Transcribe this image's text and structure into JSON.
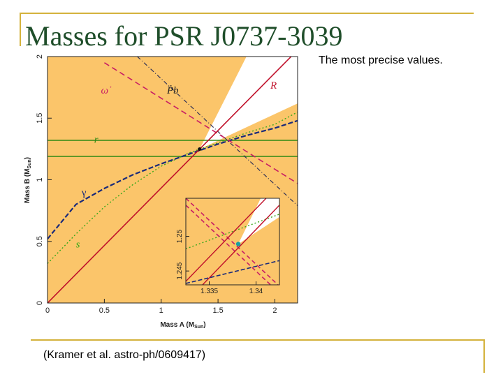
{
  "slide": {
    "title": "Masses for PSR J0737-3039",
    "subtitle": "The most precise values.",
    "citation": "(Kramer et al. astro-ph/0609417)"
  },
  "colors": {
    "frame": "#d4b23c",
    "title": "#1f4e2a",
    "allowed_region": "#ffffff",
    "excluded_region": "#fbc56a",
    "R_line": "#c0102a",
    "omega_dot": "#c81e64",
    "Pb_dot": "#333355",
    "r_shapiro": "#2f8a12",
    "gamma": "#1a2a7a",
    "s_shapiro": "#3aa81a",
    "best_fit": "#1aa0a0"
  },
  "chart_data": [
    {
      "type": "line",
      "xlabel": "Mass A (M",
      "xlabel_sub": "Sun",
      "xlabel_end": ")",
      "ylabel": "Mass B (M",
      "ylabel_sub": "Sun",
      "ylabel_end": ")",
      "xlim": [
        0,
        2.2
      ],
      "ylim": [
        0,
        2.0
      ],
      "xticks": [
        "0",
        "0.5",
        "1",
        "1.5",
        "2"
      ],
      "xtick_values": [
        0,
        0.5,
        1,
        1.5,
        2
      ],
      "yticks": [
        "0",
        "0.5",
        "1",
        "1.5",
        "2"
      ],
      "ytick_values": [
        0,
        0.5,
        1,
        1.5,
        2
      ],
      "curve_labels": {
        "omega_dot": "ω̇",
        "Pb_dot": "Ṗb",
        "R": "R",
        "r": "r",
        "gamma": "γ",
        "s": "s"
      },
      "series": [
        {
          "key": "R",
          "x": [
            0,
            2.2
          ],
          "y": [
            0,
            2.053
          ]
        },
        {
          "key": "omega_dot",
          "x": [
            0.5,
            2.2
          ],
          "y": [
            1.95,
            0.97
          ]
        },
        {
          "key": "Pb_dot",
          "x": [
            0.79,
            2.2
          ],
          "y": [
            2.0,
            0.79
          ]
        },
        {
          "key": "gamma",
          "x": [
            0,
            0.25,
            0.5,
            0.75,
            1.0,
            1.25,
            1.5,
            1.75,
            2.0,
            2.2
          ],
          "y": [
            0.52,
            0.8,
            0.93,
            1.04,
            1.13,
            1.21,
            1.29,
            1.36,
            1.42,
            1.48
          ]
        },
        {
          "key": "s",
          "x": [
            0,
            0.25,
            0.5,
            0.75,
            1.0,
            1.25,
            1.5,
            1.75,
            2.0,
            2.2
          ],
          "y": [
            0.32,
            0.56,
            0.78,
            0.96,
            1.11,
            1.22,
            1.3,
            1.38,
            1.45,
            1.55
          ]
        },
        {
          "key": "r_upper",
          "x": [
            0,
            2.2
          ],
          "y": [
            1.32,
            1.32
          ]
        },
        {
          "key": "r_lower",
          "x": [
            0,
            2.2
          ],
          "y": [
            1.19,
            1.19
          ]
        }
      ],
      "best_fit": {
        "x": 1.3381,
        "y": 1.2489
      }
    },
    {
      "type": "line",
      "panel": "inset",
      "xlim": [
        1.3325,
        1.3425
      ],
      "ylim": [
        1.243,
        1.2555
      ],
      "xticks": [
        "1.335",
        "1.34"
      ],
      "xtick_values": [
        1.335,
        1.34
      ],
      "yticks": [
        "1.245",
        "1.25"
      ],
      "ytick_values": [
        1.245,
        1.25
      ],
      "series": [
        {
          "key": "R_upper",
          "x": [
            1.3325,
            1.3425
          ],
          "y": [
            1.2435,
            1.2575
          ]
        },
        {
          "key": "R_lower",
          "x": [
            1.3325,
            1.3425
          ],
          "y": [
            1.2405,
            1.2545
          ]
        },
        {
          "key": "omega_dot_a",
          "x": [
            1.3325,
            1.3425
          ],
          "y": [
            1.2545,
            1.2418
          ]
        },
        {
          "key": "omega_dot_b",
          "x": [
            1.3325,
            1.3425
          ],
          "y": [
            1.2555,
            1.2428
          ]
        },
        {
          "key": "s",
          "x": [
            1.3325,
            1.3425
          ],
          "y": [
            1.2482,
            1.2532
          ]
        },
        {
          "key": "gamma",
          "x": [
            1.3325,
            1.3425
          ],
          "y": [
            1.2432,
            1.2465
          ]
        }
      ],
      "best_fit": {
        "x": 1.3381,
        "y": 1.2489
      }
    }
  ]
}
